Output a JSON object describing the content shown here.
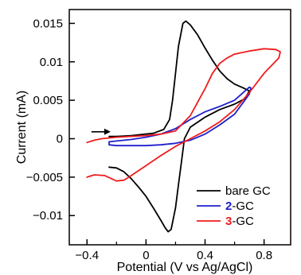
{
  "chart_data": {
    "type": "line",
    "xlabel": "Potential (V vs Ag/AgCl)",
    "ylabel": "Current (mA)",
    "xlim": [
      -0.52,
      0.98
    ],
    "ylim": [
      -0.0138,
      0.0168
    ],
    "x_ticks": [
      {
        "value": -0.4,
        "label": "−0.4"
      },
      {
        "value": 0,
        "label": "0"
      },
      {
        "value": 0.4,
        "label": "0.4"
      },
      {
        "value": 0.8,
        "label": "0.8"
      }
    ],
    "x_minor_ticks": [
      -0.2,
      0.2,
      0.6
    ],
    "y_ticks": [
      {
        "value": 0.015,
        "label": "0.015"
      },
      {
        "value": 0.01,
        "label": "0.01"
      },
      {
        "value": 0.005,
        "label": "0.005"
      },
      {
        "value": 0,
        "label": "0"
      },
      {
        "value": -0.005,
        "label": "−0.005"
      },
      {
        "value": -0.01,
        "label": "−0.01"
      }
    ],
    "grid": false,
    "legend_position": "bottom-right",
    "annotation": {
      "type": "arrow",
      "direction": "right",
      "from": [
        -0.37,
        0.0009
      ],
      "to": [
        -0.24,
        0.0009
      ]
    },
    "series": [
      {
        "name_prefix": "",
        "name": "bare GC",
        "color": "#000000",
        "points": [
          [
            -0.25,
            -0.0037
          ],
          [
            -0.2,
            -0.0038
          ],
          [
            -0.15,
            -0.0043
          ],
          [
            -0.1,
            -0.0052
          ],
          [
            -0.05,
            -0.0063
          ],
          [
            0.0,
            -0.0075
          ],
          [
            0.05,
            -0.009
          ],
          [
            0.1,
            -0.0106
          ],
          [
            0.13,
            -0.0116
          ],
          [
            0.15,
            -0.0121
          ],
          [
            0.17,
            -0.0118
          ],
          [
            0.2,
            -0.009
          ],
          [
            0.22,
            -0.006
          ],
          [
            0.24,
            -0.003
          ],
          [
            0.26,
            0.0
          ],
          [
            0.3,
            0.0015
          ],
          [
            0.4,
            0.0028
          ],
          [
            0.5,
            0.0038
          ],
          [
            0.6,
            0.0045
          ],
          [
            0.67,
            0.0052
          ],
          [
            0.7,
            0.0062
          ],
          [
            0.66,
            0.0066
          ],
          [
            0.6,
            0.0071
          ],
          [
            0.55,
            0.0078
          ],
          [
            0.5,
            0.0088
          ],
          [
            0.45,
            0.0102
          ],
          [
            0.4,
            0.0118
          ],
          [
            0.35,
            0.0135
          ],
          [
            0.3,
            0.0148
          ],
          [
            0.27,
            0.0153
          ],
          [
            0.25,
            0.015
          ],
          [
            0.22,
            0.012
          ],
          [
            0.2,
            0.0085
          ],
          [
            0.18,
            0.005
          ],
          [
            0.16,
            0.0025
          ],
          [
            0.12,
            0.0012
          ],
          [
            0.05,
            0.0007
          ],
          [
            -0.1,
            0.0004
          ],
          [
            -0.2,
            0.0003
          ],
          [
            -0.25,
            0.0003
          ]
        ]
      },
      {
        "name_prefix": "2",
        "name": "-GC",
        "color": "#1f1fcc",
        "points": [
          [
            -0.25,
            -0.0008
          ],
          [
            -0.2,
            -0.0009
          ],
          [
            -0.1,
            -0.0009
          ],
          [
            0.0,
            -0.0009
          ],
          [
            0.1,
            -0.0008
          ],
          [
            0.2,
            -0.0006
          ],
          [
            0.3,
            -0.0002
          ],
          [
            0.4,
            0.0006
          ],
          [
            0.5,
            0.0018
          ],
          [
            0.6,
            0.0032
          ],
          [
            0.7,
            0.0058
          ],
          [
            0.71,
            0.0066
          ],
          [
            0.7,
            0.0067
          ],
          [
            0.6,
            0.005
          ],
          [
            0.5,
            0.0042
          ],
          [
            0.4,
            0.0035
          ],
          [
            0.3,
            0.0025
          ],
          [
            0.2,
            0.0013
          ],
          [
            0.1,
            0.0006
          ],
          [
            0.0,
            0.0002
          ],
          [
            -0.1,
            -0.0001
          ],
          [
            -0.2,
            -0.0003
          ],
          [
            -0.25,
            -0.0004
          ],
          [
            -0.25,
            -0.0008
          ]
        ]
      },
      {
        "name_prefix": "3",
        "name": "-GC",
        "color": "#ee1c1c",
        "points": [
          [
            -0.4,
            -0.0005
          ],
          [
            -0.35,
            -0.0002
          ],
          [
            -0.3,
            0.0
          ],
          [
            -0.2,
            0.0002
          ],
          [
            -0.1,
            0.0003
          ],
          [
            0.0,
            0.0004
          ],
          [
            0.1,
            0.0006
          ],
          [
            0.2,
            0.001
          ],
          [
            0.3,
            0.003
          ],
          [
            0.4,
            0.0065
          ],
          [
            0.45,
            0.0085
          ],
          [
            0.5,
            0.0098
          ],
          [
            0.55,
            0.0105
          ],
          [
            0.6,
            0.011
          ],
          [
            0.7,
            0.0114
          ],
          [
            0.8,
            0.0117
          ],
          [
            0.88,
            0.0116
          ],
          [
            0.91,
            0.0113
          ],
          [
            0.9,
            0.0105
          ],
          [
            0.8,
            0.0085
          ],
          [
            0.7,
            0.006
          ],
          [
            0.6,
            0.0038
          ],
          [
            0.5,
            0.0022
          ],
          [
            0.4,
            0.001
          ],
          [
            0.3,
            0.0
          ],
          [
            0.2,
            -0.001
          ],
          [
            0.1,
            -0.0022
          ],
          [
            0.0,
            -0.0035
          ],
          [
            -0.1,
            -0.0048
          ],
          [
            -0.15,
            -0.0054
          ],
          [
            -0.2,
            -0.0055
          ],
          [
            -0.28,
            -0.0048
          ],
          [
            -0.35,
            -0.0047
          ],
          [
            -0.4,
            -0.005
          ]
        ]
      }
    ]
  }
}
